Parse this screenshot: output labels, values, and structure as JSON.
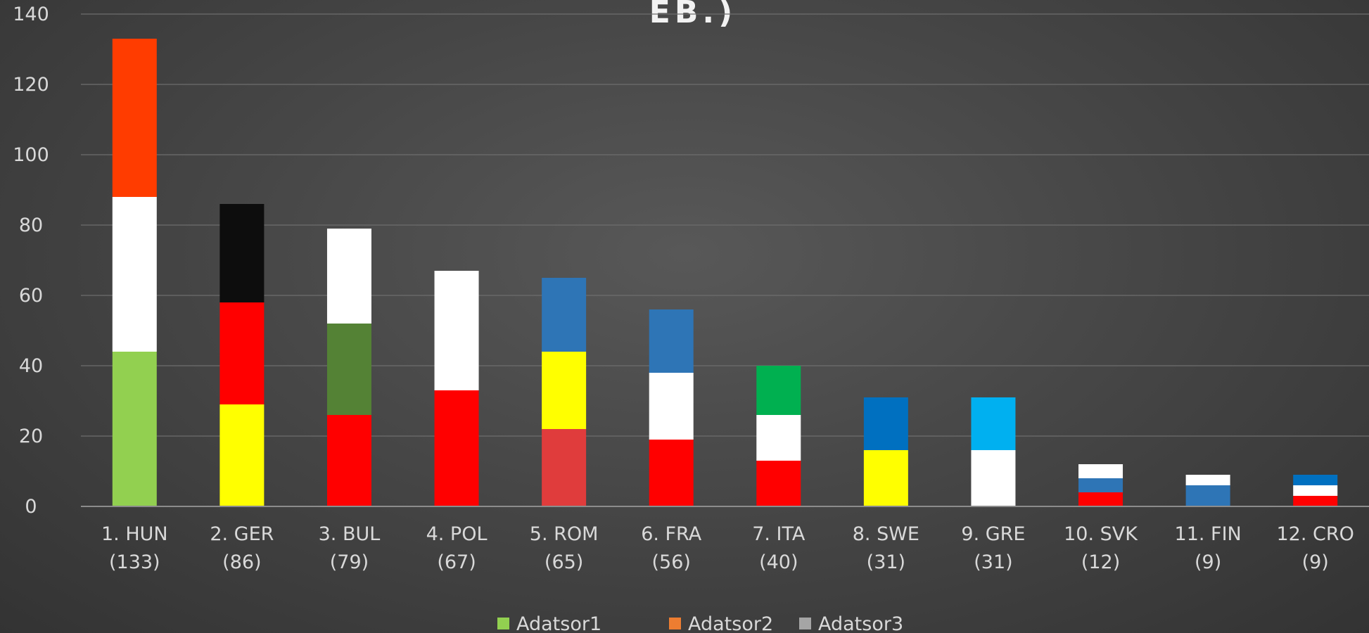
{
  "chart_data": {
    "type": "bar",
    "stacked": true,
    "title": "EB.)",
    "categories": [
      [
        "1. HUN",
        "(133)"
      ],
      [
        "2. GER",
        "(86)"
      ],
      [
        "3. BUL",
        "(79)"
      ],
      [
        "4. POL",
        "(67)"
      ],
      [
        "5. ROM",
        "(65)"
      ],
      [
        "6. FRA",
        "(56)"
      ],
      [
        "7. ITA",
        "(40)"
      ],
      [
        "8. SWE",
        "(31)"
      ],
      [
        "9. GRE",
        "(31)"
      ],
      [
        "10. SVK",
        "(12)"
      ],
      [
        "11. FIN",
        "(9)"
      ],
      [
        "12. CRO",
        "(9)"
      ]
    ],
    "series": [
      {
        "name": "Adatsor1",
        "legend_color": "#92d050",
        "values": [
          44,
          29,
          26,
          33,
          22,
          19,
          13,
          16,
          16,
          4,
          6,
          3
        ],
        "colors": [
          "#92d050",
          "#ffff00",
          "#ff0000",
          "#ff0000",
          "#e03c3c",
          "#ff0000",
          "#ff0000",
          "#ffff00",
          "#ffffff",
          "#ff0000",
          "#2e75b6",
          "#ff0000"
        ]
      },
      {
        "name": "Adatsor2",
        "legend_color": "#ed7d31",
        "values": [
          44,
          29,
          26,
          34,
          22,
          19,
          13,
          15,
          15,
          4,
          3,
          3
        ],
        "colors": [
          "#ffffff",
          "#ff0000",
          "#548235",
          "#ffffff",
          "#ffff00",
          "#ffffff",
          "#ffffff",
          "#0070c0",
          "#00b0f0",
          "#2e75b6",
          "#ffffff",
          "#ffffff"
        ]
      },
      {
        "name": "Adatsor3",
        "legend_color": "#a5a5a5",
        "values": [
          45,
          28,
          27,
          0,
          21,
          18,
          14,
          0,
          0,
          4,
          0,
          3
        ],
        "colors": [
          "#ff3c00",
          "#0d0d0d",
          "#ffffff",
          "#ffffff",
          "#2e75b6",
          "#2e75b6",
          "#00b050",
          "#0070c0",
          "#00b0f0",
          "#ffffff",
          "#ffffff",
          "#0070c0"
        ]
      }
    ],
    "ylim": [
      0,
      140
    ],
    "yticks": [
      "0",
      "20",
      "40",
      "60",
      "80",
      "100",
      "120",
      "140"
    ],
    "grid": true,
    "legend": "bottom"
  }
}
